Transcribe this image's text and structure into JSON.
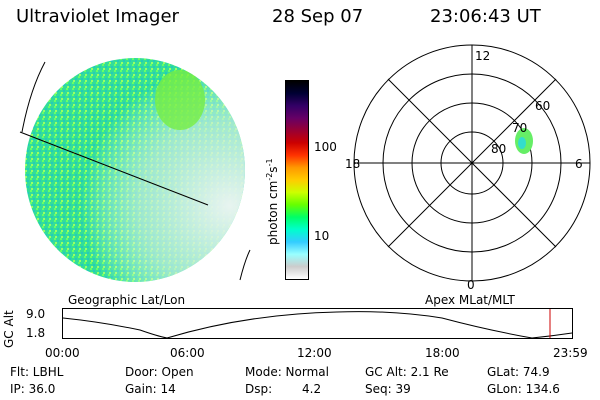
{
  "header": {
    "title": "Ultraviolet Imager",
    "date": "28 Sep 07",
    "time": "23:06:43 UT"
  },
  "colorbar": {
    "label": "photon cm^-2 s^-1",
    "label_main": "photon cm",
    "label_exp1": "-2",
    "label_s": "s",
    "label_exp2": "-1",
    "ticks": [
      "100",
      "10"
    ],
    "colors": [
      "#000000",
      "#000033",
      "#330066",
      "#660066",
      "#990033",
      "#cc0000",
      "#ff3300",
      "#ff9900",
      "#ffcc00",
      "#ccff00",
      "#66ff00",
      "#00ff66",
      "#00ffcc",
      "#33ccff",
      "#99ffff",
      "#cccccc",
      "#ffffff"
    ]
  },
  "polar": {
    "mlt_labels": [
      "12",
      "18",
      "6",
      "0"
    ],
    "lat_labels": [
      "60",
      "70",
      "80"
    ]
  },
  "map_labels": {
    "left": "Geographic Lat/Lon",
    "right": "Apex MLat/MLT"
  },
  "alt_plot": {
    "ylabel": "GC Alt",
    "y_ticks": [
      "9.0",
      "1.8"
    ],
    "x_ticks": [
      "00:00",
      "06:00",
      "12:00",
      "18:00",
      "23:59"
    ],
    "marker_time": "23:06:43"
  },
  "status": {
    "flt": "Flt: LBHL",
    "ip": "IP: 36.0",
    "door": "Door: Open",
    "gain": "Gain: 14",
    "mode": "Mode: Normal",
    "dsp_label": "Dsp:",
    "dsp_value": "4.2",
    "gc_alt": "GC Alt: 2.1 Re",
    "seq": "Seq: 39",
    "glat": "GLat: 74.9",
    "glon": "GLon: 134.6"
  },
  "accent_colors": {
    "auroral_green": "#66ee66",
    "auroral_cyan": "#33ddcc",
    "marker_red": "#cc0000"
  }
}
